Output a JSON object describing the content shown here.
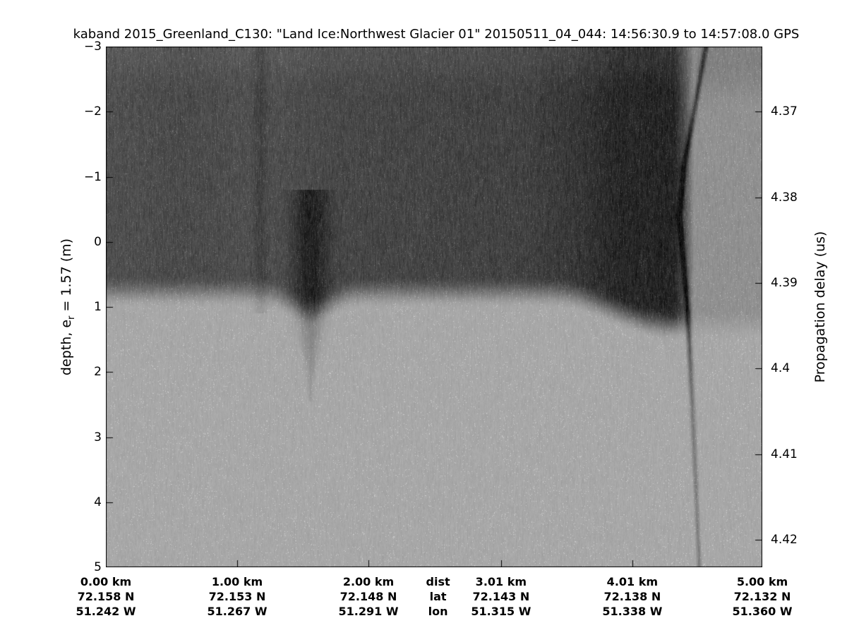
{
  "chart_data": {
    "type": "heatmap",
    "title": "kaband 2015_Greenland_C130: \"Land Ice:Northwest Glacier 01\"  20150511_04_044: 14:56:30.9 to 14:57:08.0 GPS",
    "ylabel_left_pre": "depth, e",
    "ylabel_left_sub": "r",
    "ylabel_left_post": " = 1.57 (m)",
    "ylabel_right": "Propagation delay (us)",
    "depth_axis": {
      "range_m": [
        -3,
        5
      ],
      "ticks": [
        {
          "v": -3,
          "label": "−3"
        },
        {
          "v": -2,
          "label": "−2"
        },
        {
          "v": -1,
          "label": "−1"
        },
        {
          "v": 0,
          "label": "0"
        },
        {
          "v": 1,
          "label": "1"
        },
        {
          "v": 2,
          "label": "2"
        },
        {
          "v": 3,
          "label": "3"
        },
        {
          "v": 4,
          "label": "4"
        },
        {
          "v": 5,
          "label": "5"
        }
      ]
    },
    "delay_axis": {
      "range_us": [
        4.3624,
        4.4232
      ],
      "ticks": [
        {
          "v": 4.37,
          "label": "4.37"
        },
        {
          "v": 4.38,
          "label": "4.38"
        },
        {
          "v": 4.39,
          "label": "4.39"
        },
        {
          "v": 4.4,
          "label": "4.4"
        },
        {
          "v": 4.41,
          "label": "4.41"
        },
        {
          "v": 4.42,
          "label": "4.42"
        }
      ]
    },
    "x_axis": {
      "range_km": [
        0,
        5
      ],
      "row_headers": [
        "dist",
        "lat",
        "lon"
      ],
      "header_x_km": 2.53,
      "columns": [
        {
          "km": 0.0,
          "dist": "0.00 km",
          "lat": "72.158 N",
          "lon": "51.242 W"
        },
        {
          "km": 1.0,
          "dist": "1.00 km",
          "lat": "72.153 N",
          "lon": "51.267 W"
        },
        {
          "km": 2.0,
          "dist": "2.00 km",
          "lat": "72.148 N",
          "lon": "51.291 W"
        },
        {
          "km": 3.01,
          "dist": "3.01 km",
          "lat": "72.143 N",
          "lon": "51.315 W"
        },
        {
          "km": 4.01,
          "dist": "4.01 km",
          "lat": "72.138 N",
          "lon": "51.338 W"
        },
        {
          "km": 5.0,
          "dist": "5.00 km",
          "lat": "72.132 N",
          "lon": "51.360 W"
        }
      ]
    },
    "echogram": {
      "seed": 20150511,
      "base_gray": 168,
      "dark_gray": 22,
      "noise_amp": 30,
      "speckle_prob": 0.02,
      "speckle_boost": 36,
      "upper_amp_profile": [
        [
          0,
          0.6
        ],
        [
          0.6,
          0.64
        ],
        [
          1.2,
          0.6
        ],
        [
          1.8,
          0.66
        ],
        [
          2.6,
          0.68
        ],
        [
          3.2,
          0.7
        ],
        [
          3.6,
          0.78
        ],
        [
          3.9,
          0.88
        ],
        [
          4.33,
          0.9
        ],
        [
          4.42,
          0.55
        ],
        [
          4.48,
          0.16
        ],
        [
          5,
          0.16
        ]
      ],
      "boundary_base_m": 1.02,
      "boundary_deepen": [
        3.4,
        4.3,
        0.5
      ],
      "transition_m": 0.5,
      "top_fade": [
        -3.0,
        -2.2,
        0.12
      ],
      "plume": {
        "x_km": 1.56,
        "top_m": 0.6,
        "tip_m": 2.45,
        "halfw_km": 0.14,
        "amp": 0.28,
        "boundary_dip_m": 0.3,
        "boundary_sigma_km": 0.2
      },
      "band": {
        "x_km": 1.18,
        "sigma_km": 0.05,
        "amp": 0.1,
        "max_depth_m": 1.1
      },
      "streak": {
        "path": [
          [
            4.57,
            -3.0
          ],
          [
            4.4,
            -1.1
          ],
          [
            4.37,
            -0.4
          ],
          [
            4.43,
            1.0
          ],
          [
            4.47,
            2.6
          ],
          [
            4.52,
            5.0
          ]
        ],
        "sigma_km": 0.02,
        "amp_top": 0.55,
        "amp_bottom": 0.32
      },
      "top_right_band": {
        "below_x_km": 4.42,
        "max_depth_m": -2.5,
        "amp": 0.12
      },
      "deep_lighten": 0.05
    }
  }
}
